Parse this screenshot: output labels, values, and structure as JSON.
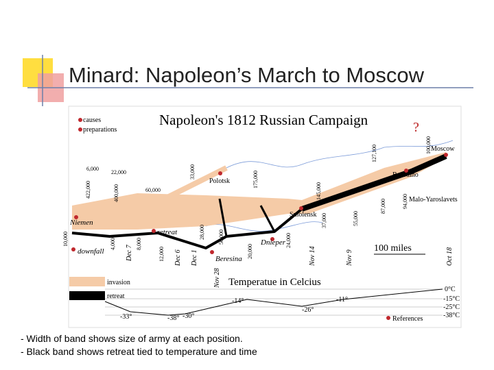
{
  "title": "Minard: Napoleon’s March to Moscow",
  "map": {
    "title": "Napoleon's 1812 Russian Campaign",
    "question_mark": "?",
    "legend_top": [
      "causes",
      "preparations"
    ],
    "army_sizes": [
      "422,000",
      "400,000",
      "6,000",
      "22,000",
      "60,000",
      "33,000",
      "175,000",
      "145,000",
      "127,100",
      "100,000",
      "55,000",
      "87,000",
      "94,000",
      "37,000",
      "24,000",
      "20,000",
      "50,000",
      "28,000",
      "12,000",
      "8,000",
      "4,000",
      "10,000"
    ],
    "places": [
      "Moscow",
      "Borodino",
      "Malo-Yaroslavets",
      "Smolensk",
      "Polotsk",
      "Niemen",
      "retreat",
      "downfall",
      "Dnieper",
      "Beresina"
    ],
    "dates": [
      "Dec 7",
      "Dec 6",
      "Dec 1",
      "Nov 28",
      "Nov 14",
      "Nov 9",
      "Oct 18"
    ],
    "scale": "100 miles",
    "band_legend": [
      "invasion",
      "retreat"
    ],
    "temperature_title": "Temperatue in Celcius",
    "temperatures": [
      "-33°",
      "-38°",
      "-30°",
      "-14°",
      "-26°",
      "-11°"
    ],
    "temperature_scale": [
      "0°C",
      "-15°C",
      "-25°C",
      "-38°C"
    ],
    "references": "References"
  },
  "notes": [
    "- Width of band shows size of army at each position.",
    "- Black band shows retreat tied to temperature and time"
  ]
}
